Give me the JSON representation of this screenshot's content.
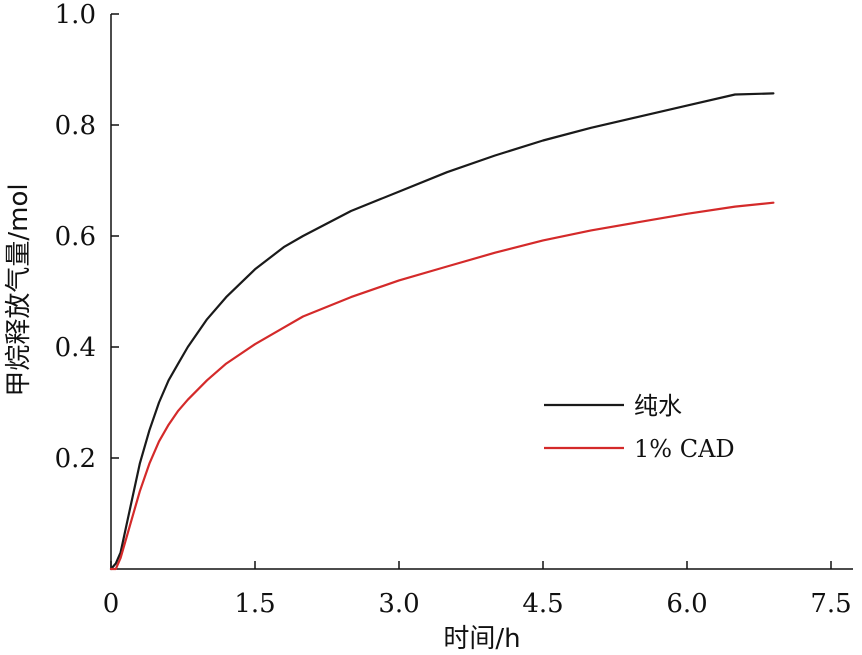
{
  "chart_data": {
    "type": "line",
    "title": "",
    "xlabel": "时间/h",
    "ylabel": "甲烷释放气量/mol",
    "xlim": [
      0,
      7.5
    ],
    "ylim": [
      0,
      1.0
    ],
    "x_ticks": [
      "0",
      "1.5",
      "3.0",
      "4.5",
      "6.0",
      "7.5"
    ],
    "x_tick_values": [
      0,
      1.5,
      3.0,
      4.5,
      6.0,
      7.5
    ],
    "y_ticks": [
      "0.2",
      "0.4",
      "0.6",
      "0.8",
      "1.0"
    ],
    "y_tick_values": [
      0.2,
      0.4,
      0.6,
      0.8,
      1.0
    ],
    "grid": false,
    "legend_position": "right-middle",
    "series": [
      {
        "name": "纯水",
        "color": "#1a1a1a",
        "x": [
          0,
          0.05,
          0.1,
          0.15,
          0.2,
          0.3,
          0.4,
          0.5,
          0.6,
          0.7,
          0.8,
          1.0,
          1.2,
          1.5,
          1.8,
          2.0,
          2.5,
          3.0,
          3.5,
          4.0,
          4.5,
          5.0,
          5.5,
          6.0,
          6.5,
          6.9
        ],
        "y": [
          0,
          0.01,
          0.03,
          0.07,
          0.11,
          0.19,
          0.25,
          0.3,
          0.34,
          0.37,
          0.4,
          0.45,
          0.49,
          0.54,
          0.58,
          0.6,
          0.645,
          0.68,
          0.715,
          0.745,
          0.772,
          0.795,
          0.815,
          0.835,
          0.855,
          0.857
        ]
      },
      {
        "name": "1% CAD",
        "color": "#d42a2a",
        "x": [
          0,
          0.05,
          0.1,
          0.15,
          0.2,
          0.3,
          0.4,
          0.5,
          0.6,
          0.7,
          0.8,
          1.0,
          1.2,
          1.5,
          1.8,
          2.0,
          2.5,
          3.0,
          3.5,
          4.0,
          4.5,
          5.0,
          5.5,
          6.0,
          6.5,
          6.9
        ],
        "y": [
          0,
          0.0,
          0.02,
          0.05,
          0.08,
          0.14,
          0.19,
          0.23,
          0.26,
          0.285,
          0.305,
          0.34,
          0.37,
          0.405,
          0.435,
          0.455,
          0.49,
          0.52,
          0.545,
          0.57,
          0.592,
          0.61,
          0.625,
          0.64,
          0.653,
          0.66
        ]
      }
    ]
  }
}
